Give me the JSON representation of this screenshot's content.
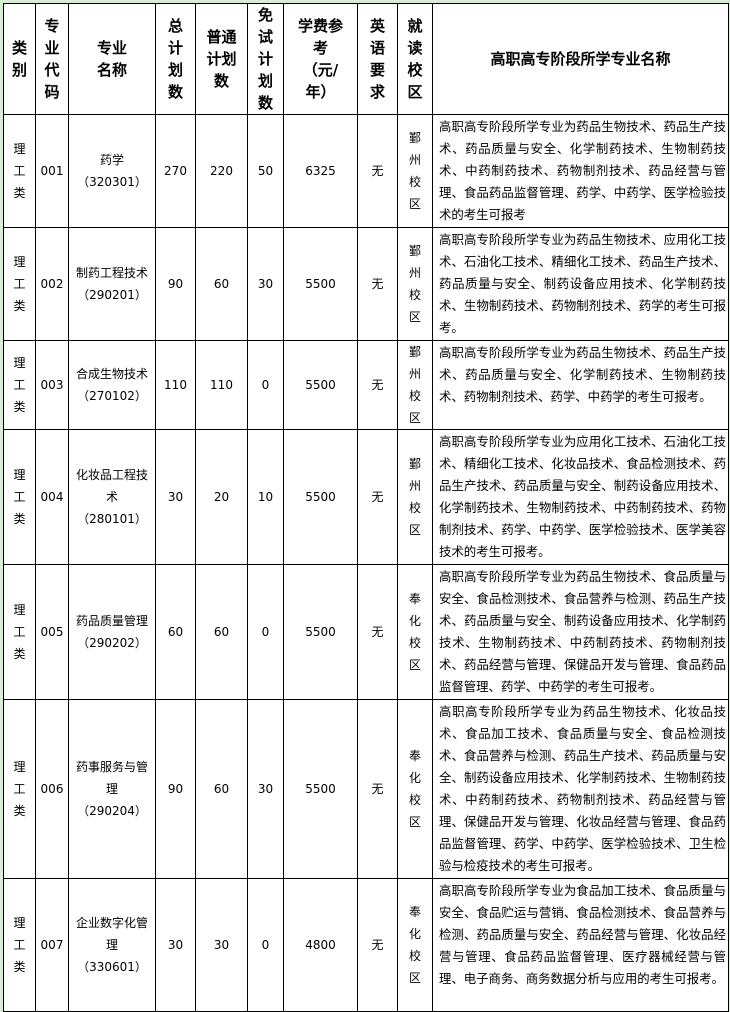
{
  "headers": [
    "类别",
    "专业代码",
    "专业名称",
    "总计划数",
    "普通计划数",
    "免试计划数",
    "学费参考（元/年）",
    "英语要求",
    "就读校区",
    "高职高专阶段所学专业名称"
  ],
  "rows": [
    {
      "category": "理工类",
      "code": "001",
      "name": "药学（320301）",
      "total": "270",
      "regular": "220",
      "exempt": "50",
      "tuition": "6325",
      "english": "无",
      "campus": "鄞州校区",
      "prior": "高职高专阶段所学专业为药品生物技术、药品生产技术、药品质量与安全、化学制药技术、生物制药技术、中药制药技术、药物制剂技术、药品经营与管理、食品药品监督管理、药学、中药学、医学检验技术的考生可报考"
    },
    {
      "category": "理工类",
      "code": "002",
      "name": "制药工程技术（290201）",
      "total": "90",
      "regular": "60",
      "exempt": "30",
      "tuition": "5500",
      "english": "无",
      "campus": "鄞州校区",
      "prior": "高职高专阶段所学专业为药品生物技术、应用化工技术、石油化工技术、精细化工技术、药品生产技术、药品质量与安全、制药设备应用技术、化学制药技术、生物制药技术、药物制剂技术、药学的考生可报考。"
    },
    {
      "category": "理工类",
      "code": "003",
      "name": "合成生物技术（270102）",
      "total": "110",
      "regular": "110",
      "exempt": "0",
      "tuition": "5500",
      "english": "无",
      "campus": "鄞州校区",
      "prior": "高职高专阶段所学专业为药品生物技术、药品生产技术、药品质量与安全、化学制药技术、生物制药技术、药物制剂技术、药学、中药学的考生可报考。"
    },
    {
      "category": "理工类",
      "code": "004",
      "name": "化妆品工程技术（280101）",
      "total": "30",
      "regular": "20",
      "exempt": "10",
      "tuition": "5500",
      "english": "无",
      "campus": "鄞州校区",
      "prior": "高职高专阶段所学专业为应用化工技术、石油化工技术、精细化工技术、化妆品技术、食品检测技术、药品生产技术、药品质量与安全、制药设备应用技术、化学制药技术、生物制药技术、中药制药技术、药物制剂技术、药学、中药学、医学检验技术、医学美容技术的考生可报考。"
    },
    {
      "category": "理工类",
      "code": "005",
      "name": "药品质量管理（290202）",
      "total": "60",
      "regular": "60",
      "exempt": "0",
      "tuition": "5500",
      "english": "无",
      "campus": "奉化校区",
      "prior": "高职高专阶段所学专业为药品生物技术、食品质量与安全、食品检测技术、食品营养与检测、药品生产技术、药品质量与安全、制药设备应用技术、化学制药技术、生物制药技术、中药制药技术、药物制剂技术、药品经营与管理、保健品开发与管理、食品药品监督管理、药学、中药学的考生可报考。"
    },
    {
      "category": "理工类",
      "code": "006",
      "name": "药事服务与管理（290204）",
      "total": "90",
      "regular": "60",
      "exempt": "30",
      "tuition": "5500",
      "english": "无",
      "campus": "奉化校区",
      "prior": "高职高专阶段所学专业为药品生物技术、化妆品技术、食品加工技术、食品质量与安全、食品检测技术、食品营养与检测、药品生产技术、药品质量与安全、制药设备应用技术、化学制药技术、生物制药技术、中药制药技术、药物制剂技术、药品经营与管理、保健品开发与管理、化妆品经营与管理、食品药品监督管理、药学、中药学、医学检验技术、卫生检验与检疫技术的考生可报考。"
    },
    {
      "category": "理工类",
      "code": "007",
      "name": "企业数字化管理（330601）",
      "total": "30",
      "regular": "30",
      "exempt": "0",
      "tuition": "4800",
      "english": "无",
      "campus": "奉化校区",
      "prior": "高职高专阶段所学专业为食品加工技术、食品质量与安全、食品贮运与营销、食品检测技术、食品营养与检测、药品质量与安全、药品经营与管理、化妆品经营与管理、食品药品监督管理、医疗器械经营与管理、电子商务、商务数据分析与应用的考生可报考。"
    }
  ]
}
